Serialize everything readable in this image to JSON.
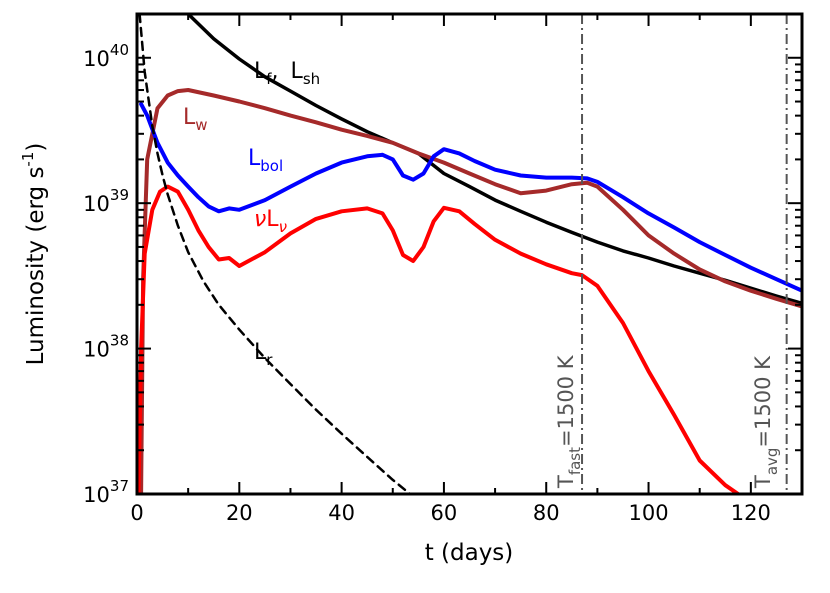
{
  "chart_data": {
    "type": "line",
    "xlabel": "t (days)",
    "ylabel": "Luminosity (erg s",
    "ylabel_sup": "-1",
    "ylabel_close": ")",
    "xlim": [
      0,
      130
    ],
    "ylim": [
      1e+37,
      2e+40
    ],
    "yscale": "log",
    "x_ticks": [
      0,
      20,
      40,
      60,
      80,
      100,
      120
    ],
    "x_tick_labels": [
      "0",
      "20",
      "40",
      "60",
      "80",
      "100",
      "120"
    ],
    "y_ticks": [
      1e+37,
      1e+38,
      1e+39,
      1e+40
    ],
    "y_tick_base": "10",
    "y_tick_exponents": [
      "37",
      "38",
      "39",
      "40"
    ],
    "series": [
      {
        "key": "Lfsh",
        "color": "#000000",
        "dash": "solid",
        "width": 3.5,
        "x": [
          10,
          15,
          20,
          25,
          30,
          35,
          40,
          45,
          50,
          55,
          60,
          65,
          70,
          75,
          80,
          85,
          90,
          95,
          100,
          105,
          110,
          115,
          120,
          125,
          130
        ],
        "y": [
          2e+40,
          1.35e+40,
          9.8e+39,
          7.4e+39,
          5.9e+39,
          4.7e+39,
          3.8e+39,
          3.1e+39,
          2.6e+39,
          2.2e+39,
          1.6e+39,
          1.3e+39,
          1.05e+39,
          8.8e+38,
          7.4e+38,
          6.3e+38,
          5.4e+38,
          4.7e+38,
          4.2e+38,
          3.7e+38,
          3.3e+38,
          2.95e+38,
          2.6e+38,
          2.3e+38,
          2.05e+38
        ]
      },
      {
        "key": "Lw",
        "color": "#a52a2a",
        "dash": "solid",
        "width": 4,
        "x": [
          0.8,
          1.2,
          2,
          4,
          6,
          8,
          10,
          15,
          20,
          25,
          30,
          35,
          40,
          45,
          50,
          55,
          60,
          65,
          70,
          75,
          80,
          85,
          88,
          90,
          95,
          100,
          105,
          110,
          115,
          120,
          125,
          130
        ],
        "y": [
          1e+37,
          3e+38,
          2e+39,
          4.5e+39,
          5.5e+39,
          5.9e+39,
          6e+39,
          5.5e+39,
          5e+39,
          4.5e+39,
          4e+39,
          3.6e+39,
          3.2e+39,
          2.9e+39,
          2.6e+39,
          2.2e+39,
          1.9e+39,
          1.6e+39,
          1.35e+39,
          1.17e+39,
          1.22e+39,
          1.35e+39,
          1.38e+39,
          1.3e+39,
          9e+38,
          6e+38,
          4.5e+38,
          3.5e+38,
          2.9e+38,
          2.5e+38,
          2.2e+38,
          1.95e+38
        ]
      },
      {
        "key": "Lbol",
        "color": "#0000ff",
        "dash": "solid",
        "width": 4,
        "x": [
          0.8,
          2,
          4,
          6,
          8,
          10,
          12,
          14,
          16,
          18,
          20,
          25,
          30,
          35,
          40,
          45,
          48,
          50,
          52,
          54,
          56,
          58,
          60,
          63,
          66,
          70,
          75,
          80,
          85,
          88,
          90,
          95,
          100,
          105,
          110,
          115,
          120,
          125,
          130
        ],
        "y": [
          4.8e+39,
          4e+39,
          2.6e+39,
          1.9e+39,
          1.55e+39,
          1.3e+39,
          1.1e+39,
          9.5e+38,
          8.8e+38,
          9.2e+38,
          9e+38,
          1.05e+39,
          1.3e+39,
          1.6e+39,
          1.9e+39,
          2.1e+39,
          2.15e+39,
          2e+39,
          1.55e+39,
          1.45e+39,
          1.6e+39,
          2.1e+39,
          2.35e+39,
          2.2e+39,
          1.95e+39,
          1.7e+39,
          1.55e+39,
          1.5e+39,
          1.5e+39,
          1.48e+39,
          1.4e+39,
          1.1e+39,
          8.5e+38,
          6.8e+38,
          5.4e+38,
          4.4e+38,
          3.6e+38,
          3e+38,
          2.5e+38
        ]
      },
      {
        "key": "nuLnu",
        "color": "#ff0000",
        "dash": "solid",
        "width": 4,
        "x": [
          0.3,
          0.8,
          1.5,
          3,
          4.5,
          6,
          8,
          10,
          12,
          14,
          16,
          18,
          20,
          25,
          30,
          35,
          40,
          45,
          48,
          50,
          52,
          54,
          56,
          58,
          60,
          63,
          66,
          70,
          75,
          80,
          85,
          87,
          90,
          95,
          100,
          105,
          110,
          115,
          117.5
        ],
        "y": [
          1e+37,
          1e+38,
          4.5e+38,
          9e+38,
          1.2e+39,
          1.3e+39,
          1.2e+39,
          9e+38,
          6.5e+38,
          5e+38,
          4.1e+38,
          4.2e+38,
          3.7e+38,
          4.6e+38,
          6.2e+38,
          7.8e+38,
          8.8e+38,
          9.2e+38,
          8.5e+38,
          6.5e+38,
          4.4e+38,
          4e+38,
          5e+38,
          7.5e+38,
          9.3e+38,
          8.8e+38,
          7.2e+38,
          5.6e+38,
          4.5e+38,
          3.8e+38,
          3.3e+38,
          3.2e+38,
          2.7e+38,
          1.5e+38,
          7e+37,
          3.5e+37,
          1.7e+37,
          1.15e+37,
          1e+37
        ]
      },
      {
        "key": "Lr",
        "color": "#000000",
        "dash": "dashed",
        "width": 2.5,
        "x": [
          0.5,
          1.5,
          3,
          4,
          5,
          6,
          8,
          10,
          13,
          16,
          20,
          25,
          30,
          35,
          40,
          45,
          50,
          55,
          60
        ],
        "y": [
          2e+40,
          8e+39,
          3.4e+39,
          2.2e+39,
          1.55e+39,
          1.15e+39,
          7e+38,
          4.6e+38,
          2.9e+38,
          2e+38,
          1.35e+38,
          8.6e+37,
          5.7e+37,
          3.8e+37,
          2.6e+37,
          1.8e+37,
          1.25e+37,
          9e+36,
          6.5e+36
        ]
      }
    ],
    "vlines": [
      {
        "key": "tfast",
        "x": 87,
        "color": "#555555"
      },
      {
        "key": "tavg",
        "x": 127,
        "color": "#555555"
      }
    ],
    "annotations": {
      "Lf_main": "L",
      "Lf_sub": "f",
      "comma": ",",
      "Lsh_main": "L",
      "Lsh_sub": "sh",
      "Lw_main": "L",
      "Lw_sub": "w",
      "Lbol_main": "L",
      "Lbol_sub": "bol",
      "nuLnu_nu": "ν",
      "nuLnu_main": "L",
      "nuLnu_sub": "ν",
      "Lr_main": "L",
      "Lr_sub": "r",
      "tfast_T": "T",
      "tfast_sub": "fast",
      "tfast_rest": "=1500 K",
      "tavg_T": "T",
      "tavg_sub": "avg",
      "tavg_rest": "=1500 K"
    },
    "colors": {
      "Lf": "#000000",
      "Lw": "#a52a2a",
      "Lbol": "#0000ff",
      "nuLnu": "#ff0000",
      "Lr": "#000000",
      "vline": "#555555"
    }
  }
}
